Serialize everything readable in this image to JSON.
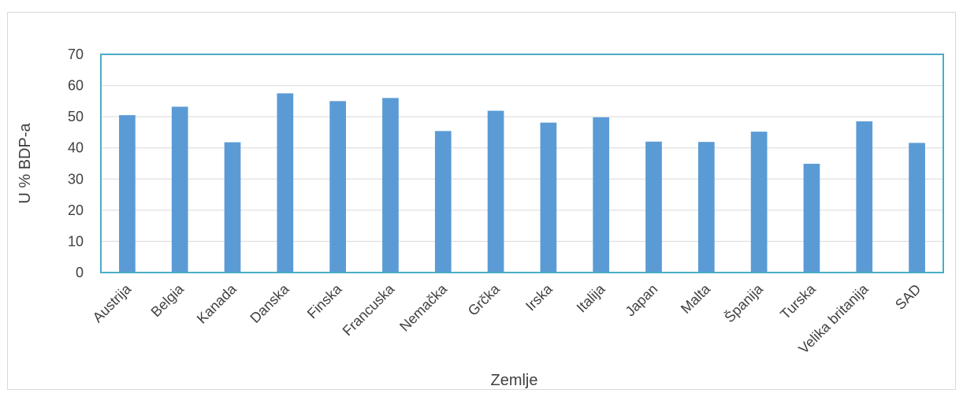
{
  "chart_data": {
    "type": "bar",
    "categories": [
      "Austrija",
      "Belgia",
      "Kanada",
      "Danska",
      "Finska",
      "Francuska",
      "Nemačka",
      "Grčka",
      "Irska",
      "Italija",
      "Japan",
      "Malta",
      "Španija",
      "Turska",
      "Velika britanija",
      "SAD"
    ],
    "values": [
      50.5,
      53.2,
      41.8,
      57.5,
      55.0,
      56.0,
      45.4,
      51.9,
      48.1,
      49.8,
      42.0,
      41.9,
      45.2,
      34.9,
      48.5,
      41.6
    ],
    "title": "",
    "xlabel": "Zemlje",
    "ylabel": "U % BDP-a",
    "ylim": [
      0,
      70
    ],
    "yticks": [
      0,
      10,
      20,
      30,
      40,
      50,
      60,
      70
    ],
    "grid": true,
    "bar_color": "#5b9bd5",
    "plot_border_color": "#4bacc6",
    "gridline_color": "#d9d9d9"
  }
}
